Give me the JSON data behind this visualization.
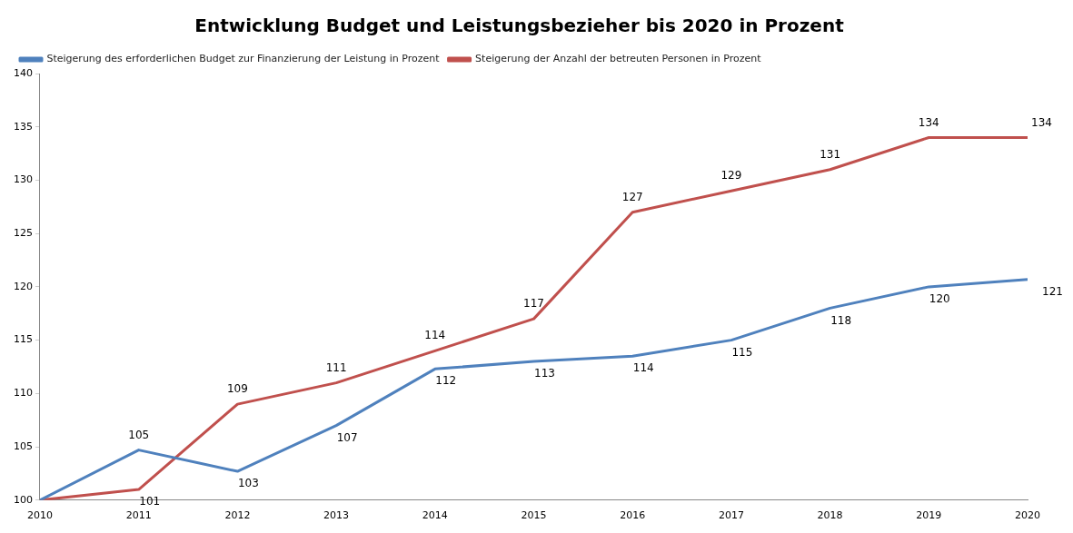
{
  "chart_data": {
    "type": "line",
    "title": "Entwicklung Budget und Leistungsbezieher bis 2020 in Prozent",
    "x": [
      2010,
      2011,
      2012,
      2013,
      2014,
      2015,
      2016,
      2017,
      2018,
      2019,
      2020
    ],
    "series": [
      {
        "name": "Steigerung des erforderlichen Budget zur Finanzierung der Leistung in Prozent",
        "color": "#4f81bd",
        "values": [
          100,
          104.7,
          102.7,
          107,
          112.3,
          113,
          113.5,
          115,
          118,
          120,
          120.7
        ],
        "value_labels": [
          null,
          "105",
          "103",
          "107",
          "112",
          "113",
          "114",
          "115",
          "118",
          "120",
          "121"
        ]
      },
      {
        "name": "Steigerung der Anzahl der betreuten Personen in Prozent",
        "color": "#c0504d",
        "values": [
          100,
          101,
          109,
          111,
          114,
          117,
          127,
          129,
          131,
          134,
          134
        ],
        "value_labels": [
          null,
          "101",
          "109",
          "111",
          "114",
          "117",
          "127",
          "129",
          "131",
          "134",
          "134"
        ]
      }
    ],
    "xlim": [
      2010,
      2020
    ],
    "xticks": [
      2010,
      2011,
      2012,
      2013,
      2014,
      2015,
      2016,
      2017,
      2018,
      2019,
      2020
    ],
    "ylim": [
      100,
      140
    ],
    "yticks": [
      100,
      105,
      110,
      115,
      120,
      125,
      130,
      135,
      140
    ],
    "grid": false,
    "legend": "top left",
    "marker": "none",
    "line_style": "solid"
  }
}
